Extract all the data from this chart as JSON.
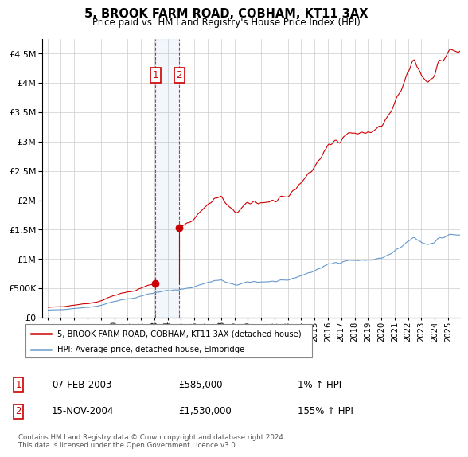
{
  "title": "5, BROOK FARM ROAD, COBHAM, KT11 3AX",
  "subtitle": "Price paid vs. HM Land Registry's House Price Index (HPI)",
  "legend_line1": "5, BROOK FARM ROAD, COBHAM, KT11 3AX (detached house)",
  "legend_line2": "HPI: Average price, detached house, Elmbridge",
  "transaction1_date": "07-FEB-2003",
  "transaction1_price": "£585,000",
  "transaction1_hpi": "1% ↑ HPI",
  "transaction2_date": "15-NOV-2004",
  "transaction2_price": "£1,530,000",
  "transaction2_hpi": "155% ↑ HPI",
  "footnote": "Contains HM Land Registry data © Crown copyright and database right 2024.\nThis data is licensed under the Open Government Licence v3.0.",
  "house_color": "#cc0000",
  "hpi_color": "#6699cc",
  "transaction1_x": 2003.083,
  "transaction2_x": 2004.875,
  "transaction1_price_val": 585000,
  "transaction2_price_val": 1530000,
  "ylim_max": 4750000,
  "background_color": "#ffffff",
  "grid_color": "#cccccc"
}
